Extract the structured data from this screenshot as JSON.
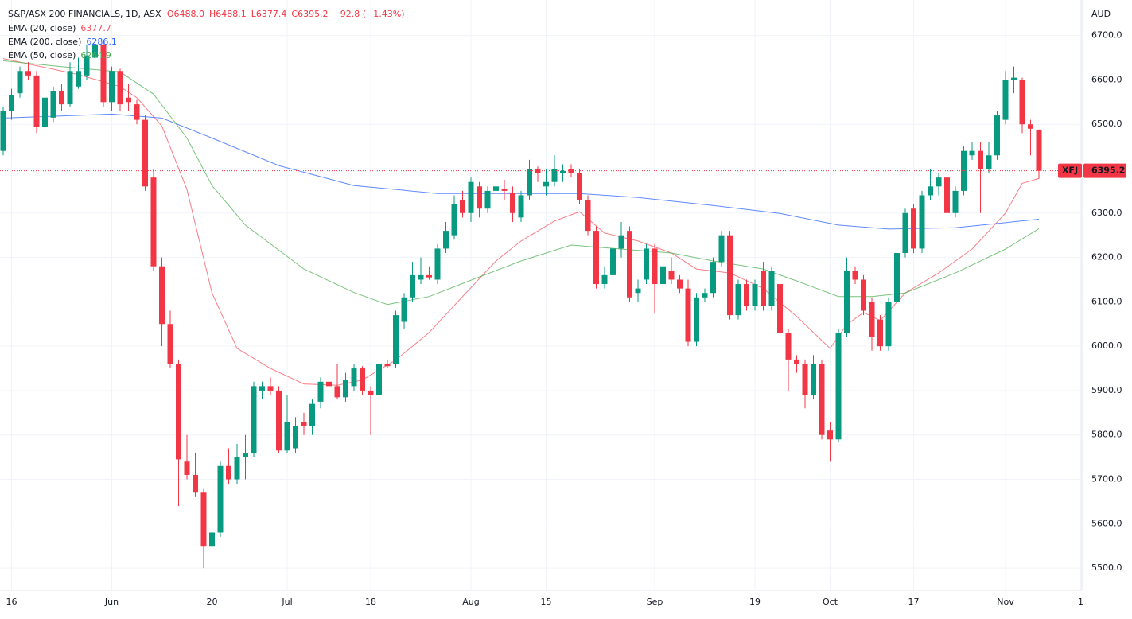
{
  "chart_data": {
    "type": "candlestick",
    "header": {
      "symbol": "S&P/ASX 200 FINANCIALS, 1D, ASX",
      "open": "O6488.0",
      "high": "H6488.1",
      "low": "L6377.4",
      "close": "C6395.2",
      "change": "−92.8 (−1.43%)"
    },
    "currency": "AUD",
    "ticker": "XFJ",
    "up_color": "#089981",
    "down_color": "#f23645",
    "grid": true,
    "ylim": [
      5450,
      6780
    ],
    "yticks": [
      {
        "value": 5500,
        "label": "5500.0"
      },
      {
        "value": 5600,
        "label": "5600.0"
      },
      {
        "value": 5700,
        "label": "5700.0"
      },
      {
        "value": 5800,
        "label": "5800.0"
      },
      {
        "value": 5900,
        "label": "5900.0"
      },
      {
        "value": 6000,
        "label": "6000.0"
      },
      {
        "value": 6100,
        "label": "6100.0"
      },
      {
        "value": 6200,
        "label": "6200.0"
      },
      {
        "value": 6300,
        "label": "6300.0"
      },
      {
        "value": 6400,
        "label": "6400.0"
      },
      {
        "value": 6500,
        "label": "6500.0"
      },
      {
        "value": 6600,
        "label": "6600.0"
      },
      {
        "value": 6700,
        "label": "6700.0"
      }
    ],
    "xticks": [
      {
        "value": 1,
        "label": "16"
      },
      {
        "value": 13,
        "label": "Jun"
      },
      {
        "value": 25,
        "label": "20"
      },
      {
        "value": 34,
        "label": "Jul"
      },
      {
        "value": 44,
        "label": "18"
      },
      {
        "value": 56,
        "label": "Aug"
      },
      {
        "value": 65,
        "label": "15"
      },
      {
        "value": 78,
        "label": "Sep"
      },
      {
        "value": 90,
        "label": "19"
      },
      {
        "value": 99,
        "label": "Oct"
      },
      {
        "value": 109,
        "label": "17"
      },
      {
        "value": 120,
        "label": "Nov"
      },
      {
        "value": 129,
        "label": "1"
      }
    ],
    "ohlc": [
      [
        6440,
        6540,
        6430,
        6530
      ],
      [
        6530,
        6580,
        6510,
        6565
      ],
      [
        6570,
        6630,
        6560,
        6620
      ],
      [
        6620,
        6640,
        6600,
        6610
      ],
      [
        6610,
        6620,
        6480,
        6495
      ],
      [
        6495,
        6570,
        6485,
        6560
      ],
      [
        6515,
        6585,
        6505,
        6575
      ],
      [
        6575,
        6590,
        6530,
        6545
      ],
      [
        6545,
        6640,
        6540,
        6620
      ],
      [
        6585,
        6650,
        6580,
        6620
      ],
      [
        6610,
        6680,
        6600,
        6655
      ],
      [
        6650,
        6700,
        6640,
        6680
      ],
      [
        6680,
        6690,
        6540,
        6550
      ],
      [
        6550,
        6630,
        6530,
        6620
      ],
      [
        6620,
        6625,
        6530,
        6545
      ],
      [
        6560,
        6590,
        6530,
        6550
      ],
      [
        6545,
        6555,
        6500,
        6510
      ],
      [
        6510,
        6520,
        6350,
        6360
      ],
      [
        6380,
        6400,
        6170,
        6180
      ],
      [
        6180,
        6200,
        6000,
        6050
      ],
      [
        6050,
        6080,
        5950,
        5960
      ],
      [
        5960,
        5970,
        5640,
        5745
      ],
      [
        5740,
        5800,
        5700,
        5710
      ],
      [
        5710,
        5760,
        5660,
        5670
      ],
      [
        5670,
        5680,
        5500,
        5550
      ],
      [
        5550,
        5600,
        5540,
        5580
      ],
      [
        5580,
        5740,
        5570,
        5730
      ],
      [
        5730,
        5770,
        5690,
        5700
      ],
      [
        5700,
        5780,
        5690,
        5750
      ],
      [
        5750,
        5800,
        5700,
        5760
      ],
      [
        5760,
        5920,
        5750,
        5910
      ],
      [
        5900,
        5920,
        5880,
        5910
      ],
      [
        5910,
        5930,
        5890,
        5900
      ],
      [
        5900,
        5910,
        5760,
        5765
      ],
      [
        5765,
        5890,
        5760,
        5830
      ],
      [
        5770,
        5840,
        5760,
        5820
      ],
      [
        5830,
        5850,
        5800,
        5820
      ],
      [
        5820,
        5880,
        5800,
        5870
      ],
      [
        5875,
        5930,
        5860,
        5920
      ],
      [
        5920,
        5950,
        5870,
        5910
      ],
      [
        5910,
        5960,
        5880,
        5885
      ],
      [
        5885,
        5940,
        5875,
        5925
      ],
      [
        5910,
        5960,
        5900,
        5950
      ],
      [
        5950,
        5955,
        5890,
        5900
      ],
      [
        5900,
        5910,
        5800,
        5890
      ],
      [
        5890,
        5970,
        5880,
        5960
      ],
      [
        5960,
        5970,
        5950,
        5955
      ],
      [
        5960,
        6080,
        5950,
        6070
      ],
      [
        6055,
        6120,
        6040,
        6110
      ],
      [
        6110,
        6190,
        6100,
        6160
      ],
      [
        6150,
        6200,
        6140,
        6160
      ],
      [
        6160,
        6180,
        6150,
        6155
      ],
      [
        6150,
        6230,
        6140,
        6220
      ],
      [
        6220,
        6280,
        6210,
        6260
      ],
      [
        6250,
        6340,
        6240,
        6320
      ],
      [
        6330,
        6350,
        6290,
        6300
      ],
      [
        6300,
        6380,
        6280,
        6370
      ],
      [
        6360,
        6370,
        6290,
        6310
      ],
      [
        6310,
        6360,
        6300,
        6350
      ],
      [
        6350,
        6370,
        6330,
        6360
      ],
      [
        6355,
        6375,
        6330,
        6350
      ],
      [
        6345,
        6360,
        6280,
        6300
      ],
      [
        6290,
        6350,
        6280,
        6340
      ],
      [
        6340,
        6420,
        6330,
        6400
      ],
      [
        6400,
        6405,
        6370,
        6390
      ],
      [
        6360,
        6400,
        6340,
        6370
      ],
      [
        6370,
        6430,
        6360,
        6400
      ],
      [
        6390,
        6410,
        6370,
        6395
      ],
      [
        6400,
        6410,
        6380,
        6390
      ],
      [
        6390,
        6400,
        6320,
        6330
      ],
      [
        6330,
        6340,
        6250,
        6260
      ],
      [
        6260,
        6270,
        6130,
        6140
      ],
      [
        6140,
        6180,
        6130,
        6160
      ],
      [
        6160,
        6240,
        6150,
        6220
      ],
      [
        6220,
        6280,
        6200,
        6250
      ],
      [
        6260,
        6270,
        6100,
        6110
      ],
      [
        6120,
        6150,
        6100,
        6130
      ],
      [
        6150,
        6230,
        6140,
        6220
      ],
      [
        6220,
        6230,
        6075,
        6140
      ],
      [
        6140,
        6200,
        6130,
        6180
      ],
      [
        6170,
        6200,
        6140,
        6150
      ],
      [
        6150,
        6160,
        6120,
        6130
      ],
      [
        6130,
        6150,
        6000,
        6010
      ],
      [
        6010,
        6120,
        6000,
        6110
      ],
      [
        6110,
        6130,
        6100,
        6120
      ],
      [
        6120,
        6200,
        6110,
        6190
      ],
      [
        6190,
        6260,
        6180,
        6250
      ],
      [
        6250,
        6260,
        6060,
        6070
      ],
      [
        6070,
        6150,
        6060,
        6140
      ],
      [
        6140,
        6150,
        6080,
        6090
      ],
      [
        6090,
        6150,
        6080,
        6140
      ],
      [
        6170,
        6190,
        6080,
        6090
      ],
      [
        6090,
        6180,
        6080,
        6170
      ],
      [
        6140,
        6150,
        6000,
        6030
      ],
      [
        6030,
        6040,
        5900,
        5970
      ],
      [
        5970,
        5980,
        5940,
        5960
      ],
      [
        5960,
        5970,
        5860,
        5890
      ],
      [
        5890,
        5980,
        5880,
        5960
      ],
      [
        5960,
        5970,
        5790,
        5800
      ],
      [
        5810,
        5830,
        5740,
        5790
      ],
      [
        5790,
        6040,
        5785,
        6030
      ],
      [
        6030,
        6200,
        6020,
        6170
      ],
      [
        6170,
        6180,
        6140,
        6150
      ],
      [
        6150,
        6160,
        6070,
        6080
      ],
      [
        6100,
        6110,
        5990,
        6020
      ],
      [
        6060,
        6070,
        5990,
        6000
      ],
      [
        6000,
        6110,
        5990,
        6100
      ],
      [
        6100,
        6220,
        6090,
        6210
      ],
      [
        6210,
        6310,
        6200,
        6300
      ],
      [
        6310,
        6320,
        6210,
        6220
      ],
      [
        6220,
        6350,
        6210,
        6340
      ],
      [
        6340,
        6400,
        6330,
        6360
      ],
      [
        6360,
        6390,
        6340,
        6380
      ],
      [
        6380,
        6390,
        6260,
        6300
      ],
      [
        6300,
        6360,
        6290,
        6350
      ],
      [
        6350,
        6450,
        6340,
        6440
      ],
      [
        6430,
        6460,
        6420,
        6440
      ],
      [
        6440,
        6460,
        6300,
        6400
      ],
      [
        6400,
        6460,
        6390,
        6430
      ],
      [
        6430,
        6530,
        6420,
        6520
      ],
      [
        6510,
        6620,
        6500,
        6600
      ],
      [
        6600,
        6630,
        6570,
        6605
      ],
      [
        6600,
        6605,
        6480,
        6500
      ],
      [
        6500,
        6510,
        6430,
        6490
      ],
      [
        6488.0,
        6488.1,
        6377.4,
        6395.2
      ]
    ],
    "series": [
      {
        "name": "EMA (20, close)",
        "color": "#f7525f",
        "x": [
          0,
          9,
          14,
          16,
          19,
          22,
          25,
          28,
          32,
          36,
          40,
          43,
          47,
          51,
          55,
          59,
          62,
          66,
          69,
          72,
          76,
          80,
          83,
          87,
          91,
          95,
          99,
          101,
          103,
          105,
          108,
          112,
          116,
          120,
          122,
          124
        ],
        "values": [
          6648,
          6612,
          6585,
          6560,
          6496,
          6353,
          6120,
          5995,
          5950,
          5915,
          5912,
          5924,
          5969,
          6031,
          6112,
          6192,
          6237,
          6282,
          6303,
          6255,
          6237,
          6210,
          6174,
          6165,
          6130,
          6067,
          5995,
          6049,
          6076,
          6058,
          6120,
          6165,
          6219,
          6300,
          6367,
          6377.7
        ]
      },
      {
        "name": "EMA (200, close)",
        "color": "#2962ff",
        "x": [
          0,
          13,
          19,
          25,
          33,
          42,
          52,
          62,
          69,
          76,
          85,
          93,
          100,
          106,
          114,
          124
        ],
        "values": [
          6514,
          6523,
          6514,
          6469,
          6407,
          6362,
          6344,
          6344,
          6344,
          6335,
          6317,
          6299,
          6273,
          6264,
          6267,
          6286.1
        ]
      },
      {
        "name": "EMA (50, close)",
        "color": "#4caf50",
        "x": [
          0,
          7,
          14,
          18,
          22,
          25,
          29,
          36,
          42,
          46,
          51,
          57,
          62,
          68,
          74,
          80,
          85,
          91,
          95,
          100,
          104,
          108,
          114,
          120,
          124
        ],
        "values": [
          6643,
          6630,
          6618,
          6568,
          6469,
          6362,
          6273,
          6174,
          6121,
          6094,
          6112,
          6156,
          6192,
          6228,
          6219,
          6210,
          6192,
          6174,
          6147,
          6112,
          6112,
          6120,
          6165,
          6219,
          6264.9
        ]
      }
    ]
  }
}
